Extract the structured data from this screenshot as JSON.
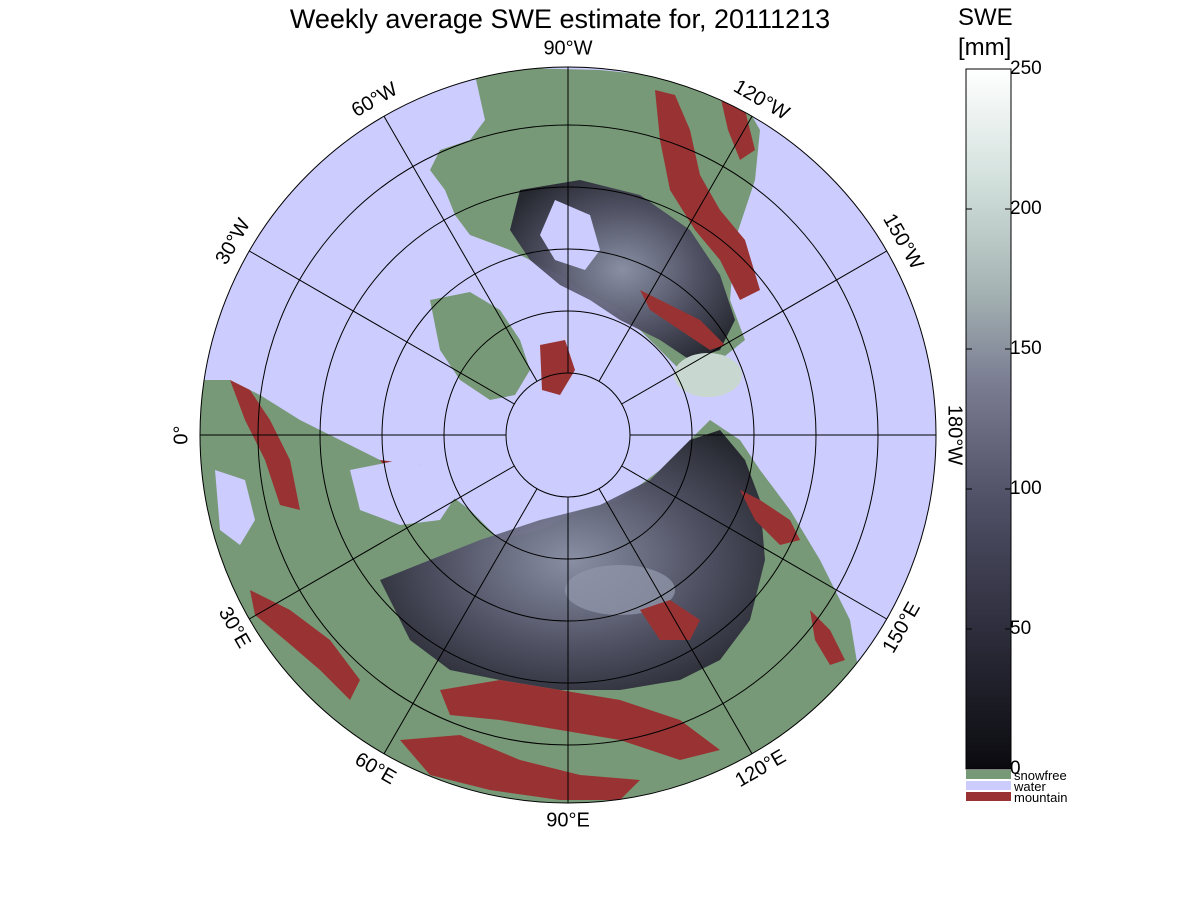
{
  "title": "Weekly average SWE estimate for, 20111213",
  "colorbar": {
    "title_line1": "SWE",
    "title_line2": "[mm]",
    "ticks": [
      {
        "value": 250,
        "label": "250"
      },
      {
        "value": 200,
        "label": "200"
      },
      {
        "value": 150,
        "label": "150"
      },
      {
        "value": 100,
        "label": "100"
      },
      {
        "value": 50,
        "label": "50"
      },
      {
        "value": 0,
        "label": "0"
      }
    ],
    "range": [
      0,
      250
    ],
    "colormap": [
      "#0b0b0f",
      "#2a2a38",
      "#4f4f66",
      "#7a7c92",
      "#a4b2b2",
      "#d2e0dc",
      "#ffffff"
    ]
  },
  "legend": [
    {
      "label": "snowfree",
      "color": "#779977"
    },
    {
      "label": "water",
      "color": "#ccccff"
    },
    {
      "label": "mountain",
      "color": "#993333"
    }
  ],
  "longitude_labels": [
    {
      "text": "90°W",
      "angle_deg": 0
    },
    {
      "text": "120°W",
      "angle_deg": 30
    },
    {
      "text": "150°W",
      "angle_deg": 60
    },
    {
      "text": "180°W",
      "angle_deg": 90
    },
    {
      "text": "150°E",
      "angle_deg": 120
    },
    {
      "text": "120°E",
      "angle_deg": 150
    },
    {
      "text": "90°E",
      "angle_deg": 180
    },
    {
      "text": "60°E",
      "angle_deg": 210
    },
    {
      "text": "30°E",
      "angle_deg": 240
    },
    {
      "text": "0°",
      "angle_deg": 270
    },
    {
      "text": "30°W",
      "angle_deg": 300
    },
    {
      "text": "60°W",
      "angle_deg": 330
    }
  ],
  "colors": {
    "water": "#ccccff",
    "snowfree": "#779977",
    "mountain": "#993333",
    "snow_dark": "#2f2f40",
    "snow_light": "#c8d8d0"
  }
}
